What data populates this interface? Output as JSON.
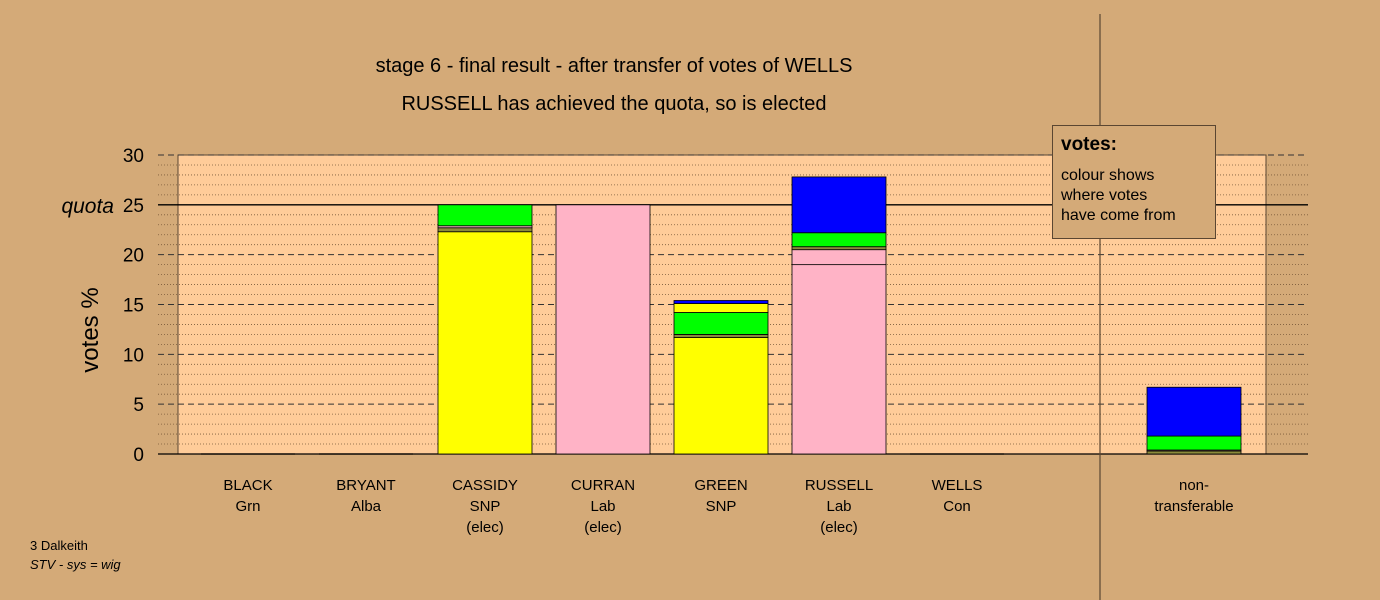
{
  "title_line1": "stage 6 - final result - after transfer of votes of WELLS",
  "title_line2": "RUSSELL has achieved the quota, so is elected",
  "legend": {
    "heading": "votes:",
    "lines": [
      "colour shows",
      "where votes",
      "have come from"
    ]
  },
  "footer": {
    "constituency": "3 Dalkeith",
    "system": "STV - sys = wig"
  },
  "colors": {
    "background": "#d4aa78",
    "plot_area": "#ffcc99",
    "SNP": "#ffff00",
    "Lab": "#ffb3c6",
    "Grn": "#00ff00",
    "Con": "#0000ff",
    "Alba": "#8b8b3c"
  },
  "chart_data": {
    "type": "bar",
    "stacked": true,
    "ylabel": "votes %",
    "ylim": [
      0,
      30
    ],
    "yticks": [
      0,
      5,
      10,
      15,
      20,
      25,
      30
    ],
    "quota": 25,
    "quota_label": "quota",
    "grid": true,
    "legend_position": "top-right",
    "candidates": [
      {
        "name": "BLACK",
        "party": "Grn",
        "status": "",
        "segments": []
      },
      {
        "name": "BRYANT",
        "party": "Alba",
        "status": "",
        "segments": []
      },
      {
        "name": "CASSIDY",
        "party": "SNP",
        "status": "(elec)",
        "segments": [
          {
            "from": "SNP",
            "value": 22.3
          },
          {
            "from": "Alba",
            "value": 0.4
          },
          {
            "from": "Lab",
            "value": 0.2
          },
          {
            "from": "Grn",
            "value": 2.1
          }
        ]
      },
      {
        "name": "CURRAN",
        "party": "Lab",
        "status": "(elec)",
        "segments": [
          {
            "from": "Lab",
            "value": 25.0
          }
        ]
      },
      {
        "name": "GREEN",
        "party": "SNP",
        "status": "",
        "segments": [
          {
            "from": "SNP",
            "value": 11.7
          },
          {
            "from": "Alba",
            "value": 0.3
          },
          {
            "from": "Grn",
            "value": 2.2
          },
          {
            "from": "SNP",
            "value": 0.9
          },
          {
            "from": "Con",
            "value": 0.3
          }
        ]
      },
      {
        "name": "RUSSELL",
        "party": "Lab",
        "status": "(elec)",
        "segments": [
          {
            "from": "Lab",
            "value": 19.0
          },
          {
            "from": "Lab",
            "value": 1.5
          },
          {
            "from": "Alba",
            "value": 0.3
          },
          {
            "from": "Grn",
            "value": 1.4
          },
          {
            "from": "Con",
            "value": 5.6
          }
        ]
      },
      {
        "name": "WELLS",
        "party": "Con",
        "status": "",
        "segments": []
      },
      {
        "name": "non-",
        "party": "transferable",
        "status": "",
        "segments": [
          {
            "from": "Alba",
            "value": 0.3
          },
          {
            "from": "Lab",
            "value": 0.1
          },
          {
            "from": "Grn",
            "value": 1.4
          },
          {
            "from": "Con",
            "value": 4.9
          }
        ]
      }
    ]
  }
}
